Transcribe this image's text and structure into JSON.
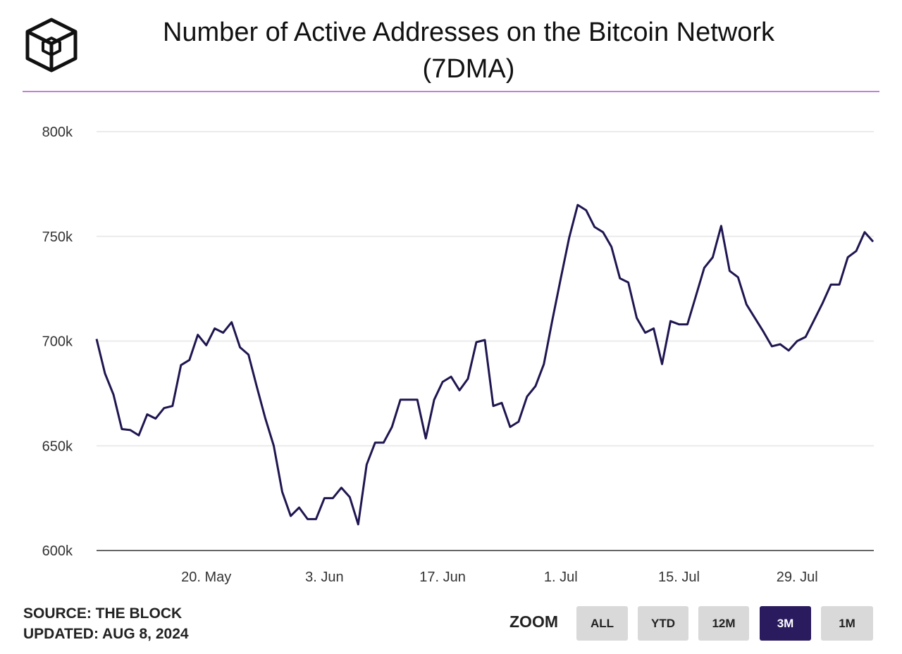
{
  "header": {
    "title_line1": "Number of Active Addresses on the Bitcoin Network",
    "title_line2": "(7DMA)",
    "logo": "the-block-cube-logo"
  },
  "footer": {
    "source": "SOURCE: THE BLOCK",
    "updated": "UPDATED: AUG 8, 2024"
  },
  "zoom": {
    "label": "ZOOM",
    "buttons": [
      {
        "label": "ALL",
        "active": false
      },
      {
        "label": "YTD",
        "active": false
      },
      {
        "label": "12M",
        "active": false
      },
      {
        "label": "3M",
        "active": true
      },
      {
        "label": "1M",
        "active": false
      }
    ]
  },
  "colors": {
    "line": "#1f1650",
    "accent_rule": "#c77ddb",
    "active_button": "#2a1a5e",
    "button": "#d9d9d9",
    "grid": "#ebebeb"
  },
  "chart_data": {
    "type": "line",
    "title": "Number of Active Addresses on the Bitcoin Network (7DMA)",
    "xlabel": "",
    "ylabel": "",
    "ylim": [
      600000,
      800000
    ],
    "yticks": [
      600000,
      650000,
      700000,
      750000,
      800000
    ],
    "ytick_labels": [
      "600k",
      "650k",
      "700k",
      "750k",
      "800k"
    ],
    "xticks": [
      "2024-05-20",
      "2024-06-03",
      "2024-06-17",
      "2024-07-01",
      "2024-07-15",
      "2024-07-29"
    ],
    "xtick_labels": [
      "20. May",
      "3. Jun",
      "17. Jun",
      "1. Jul",
      "15. Jul",
      "29. Jul"
    ],
    "xlim": [
      "2024-05-07",
      "2024-08-07"
    ],
    "grid": true,
    "legend": "none",
    "x": [
      "2024-05-07",
      "2024-05-08",
      "2024-05-09",
      "2024-05-10",
      "2024-05-11",
      "2024-05-12",
      "2024-05-13",
      "2024-05-14",
      "2024-05-15",
      "2024-05-16",
      "2024-05-17",
      "2024-05-18",
      "2024-05-19",
      "2024-05-20",
      "2024-05-21",
      "2024-05-22",
      "2024-05-23",
      "2024-05-24",
      "2024-05-25",
      "2024-05-26",
      "2024-05-27",
      "2024-05-28",
      "2024-05-29",
      "2024-05-30",
      "2024-05-31",
      "2024-06-01",
      "2024-06-02",
      "2024-06-03",
      "2024-06-04",
      "2024-06-05",
      "2024-06-06",
      "2024-06-07",
      "2024-06-08",
      "2024-06-09",
      "2024-06-10",
      "2024-06-11",
      "2024-06-12",
      "2024-06-13",
      "2024-06-14",
      "2024-06-15",
      "2024-06-16",
      "2024-06-17",
      "2024-06-18",
      "2024-06-19",
      "2024-06-20",
      "2024-06-21",
      "2024-06-22",
      "2024-06-23",
      "2024-06-24",
      "2024-06-25",
      "2024-06-26",
      "2024-06-27",
      "2024-06-28",
      "2024-06-29",
      "2024-06-30",
      "2024-07-01",
      "2024-07-02",
      "2024-07-03",
      "2024-07-04",
      "2024-07-05",
      "2024-07-06",
      "2024-07-07",
      "2024-07-08",
      "2024-07-09",
      "2024-07-10",
      "2024-07-11",
      "2024-07-12",
      "2024-07-13",
      "2024-07-14",
      "2024-07-15",
      "2024-07-16",
      "2024-07-17",
      "2024-07-18",
      "2024-07-19",
      "2024-07-20",
      "2024-07-21",
      "2024-07-22",
      "2024-07-23",
      "2024-07-24",
      "2024-07-25",
      "2024-07-26",
      "2024-07-27",
      "2024-07-28",
      "2024-07-29",
      "2024-07-30",
      "2024-07-31",
      "2024-08-01",
      "2024-08-02",
      "2024-08-03",
      "2024-08-04",
      "2024-08-05",
      "2024-08-06",
      "2024-08-07"
    ],
    "series": [
      {
        "values": [
          701000,
          684500,
          674500,
          658000,
          657500,
          655000,
          665000,
          663000,
          668000,
          669000,
          688500,
          691000,
          703000,
          698000,
          706000,
          704000,
          709000,
          697000,
          693500,
          678000,
          663000,
          650000,
          628000,
          616500,
          620500,
          615000,
          615000,
          625000,
          625000,
          630000,
          625500,
          612500,
          641000,
          651500,
          651500,
          659000,
          672000,
          672000,
          672000,
          653500,
          672000,
          680500,
          683000,
          676500,
          682000,
          699500,
          700500,
          669000,
          670500,
          659000,
          661500,
          673500,
          678500,
          689000,
          710000,
          730000,
          749500,
          765000,
          762500,
          754500,
          752000,
          745000,
          730000,
          728000,
          711000,
          704000,
          706000,
          689000,
          709500,
          708000,
          708000,
          721500,
          735000,
          740000,
          755000,
          733500,
          730500,
          717500,
          711000,
          704500,
          697500,
          698500,
          695500,
          700000,
          702000,
          710000,
          718000,
          727000,
          727000,
          740000,
          743000,
          752000,
          747500
        ]
      }
    ]
  }
}
